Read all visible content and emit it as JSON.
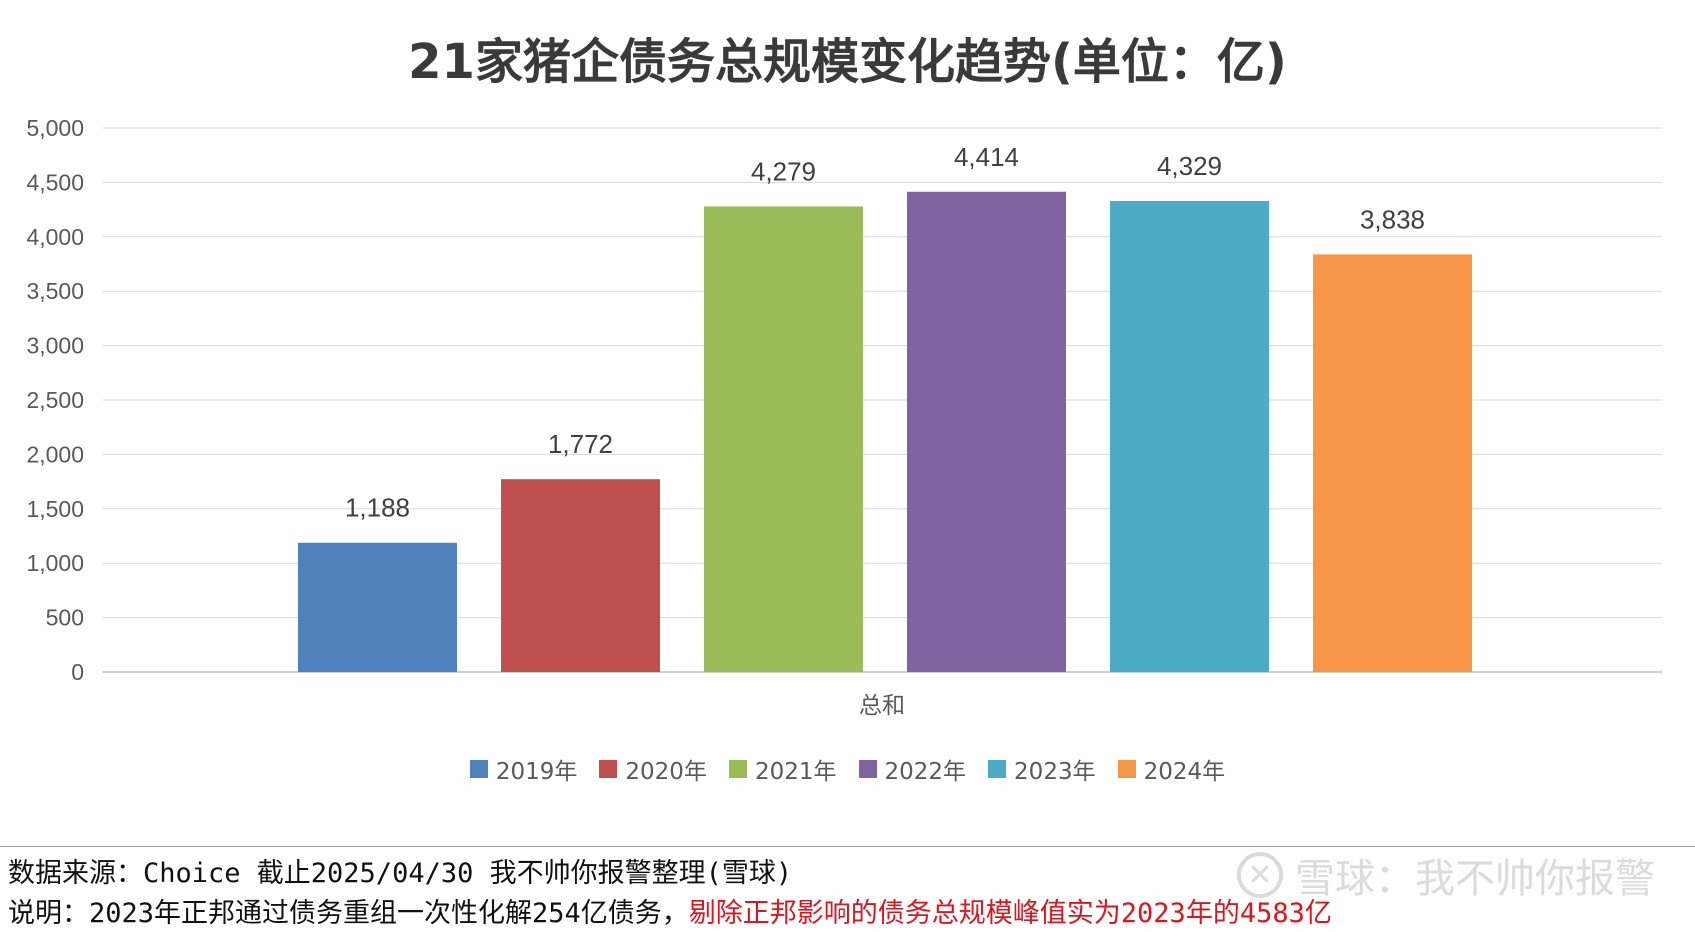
{
  "chart_data": {
    "type": "bar",
    "title": "21家猪企债务总规模变化趋势(单位：亿)",
    "xlabel": "",
    "ylabel": "",
    "categories": [
      "总和"
    ],
    "series": [
      {
        "name": "2019年",
        "values": [
          1188
        ],
        "label": "1,188",
        "color": "#4f81bd"
      },
      {
        "name": "2020年",
        "values": [
          1772
        ],
        "label": "1,772",
        "color": "#c0504d"
      },
      {
        "name": "2021年",
        "values": [
          4279
        ],
        "label": "4,279",
        "color": "#9bbb59"
      },
      {
        "name": "2022年",
        "values": [
          4414
        ],
        "label": "4,414",
        "color": "#8064a2"
      },
      {
        "name": "2023年",
        "values": [
          4329
        ],
        "label": "4,329",
        "color": "#4bacc6"
      },
      {
        "name": "2024年",
        "values": [
          3838
        ],
        "label": "3,838",
        "color": "#f79646"
      }
    ],
    "ylim": [
      0,
      5000
    ],
    "yticks": [
      0,
      500,
      1000,
      1500,
      2000,
      2500,
      3000,
      3500,
      4000,
      4500,
      5000
    ],
    "ytick_labels": [
      "0",
      "500",
      "1,000",
      "1,500",
      "2,000",
      "2,500",
      "3,000",
      "3,500",
      "4,000",
      "4,500",
      "5,000"
    ],
    "grid": true,
    "legend_position": "bottom"
  },
  "footer": {
    "source_text": "数据来源：Choice  截止2025/04/30  我不帅你报警整理(雪球)",
    "note_prefix": "说明：2023年正邦通过债务重组一次性化解254亿债务，",
    "note_highlight": "剔除正邦影响的债务总规模峰值实为2023年的4583亿",
    "highlight_color": "#e0141e"
  },
  "watermark": {
    "text": "雪球：我不帅你报警"
  }
}
